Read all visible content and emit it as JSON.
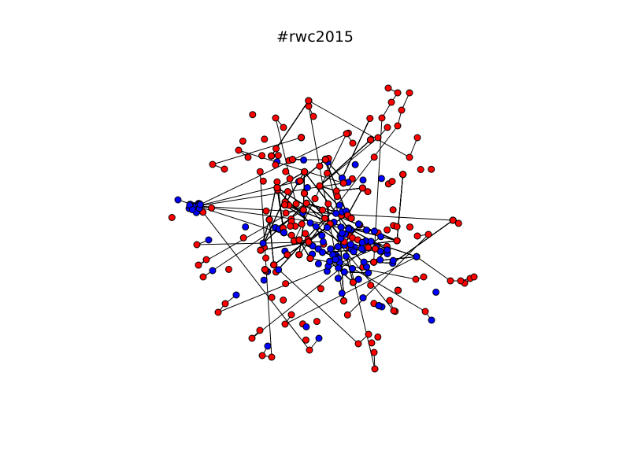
{
  "figure": {
    "title": "#rwc2015"
  },
  "colors": {
    "background": "#ffffff",
    "node_red": "#ff0000",
    "node_blue": "#0000ff",
    "node_outline": "#000000",
    "edge": "#000000"
  },
  "legend": {
    "node_classes": [
      "red",
      "blue"
    ]
  }
}
